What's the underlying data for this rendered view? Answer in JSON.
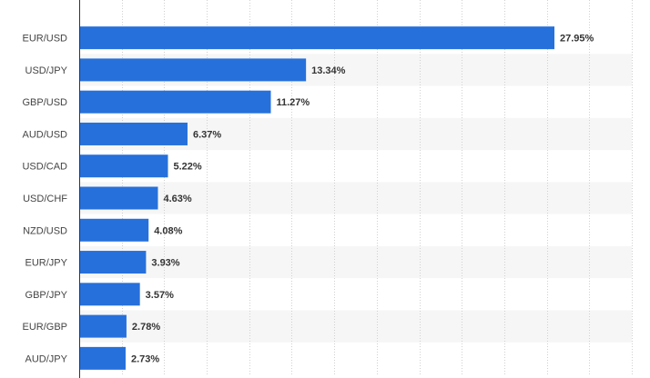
{
  "chart_data": {
    "type": "bar",
    "orientation": "horizontal",
    "categories": [
      "EUR/USD",
      "USD/JPY",
      "GBP/USD",
      "AUD/USD",
      "USD/CAD",
      "USD/CHF",
      "NZD/USD",
      "EUR/JPY",
      "GBP/JPY",
      "EUR/GBP",
      "AUD/JPY"
    ],
    "values": [
      27.95,
      13.34,
      11.27,
      6.37,
      5.22,
      4.63,
      4.08,
      3.93,
      3.57,
      2.78,
      2.73
    ],
    "value_labels": [
      "27.95%",
      "13.34%",
      "11.27%",
      "6.37%",
      "5.22%",
      "4.63%",
      "4.08%",
      "3.93%",
      "3.57%",
      "2.78%",
      "2.73%"
    ],
    "xlim": [
      0,
      32.5
    ],
    "grid": true,
    "grid_style": "dotted vertical",
    "row_banding": true,
    "colors": {
      "bar": "#2670dc",
      "label": "#444444",
      "value_label": "#333333",
      "band": "#f6f6f6",
      "grid": "#d0d0d0",
      "axis": "#333333"
    }
  }
}
